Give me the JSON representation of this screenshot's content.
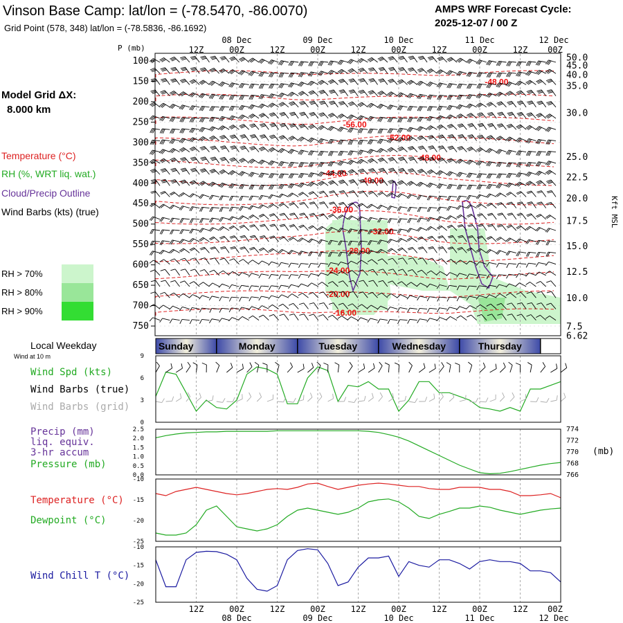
{
  "header": {
    "title": "Vinson Base Camp:  lat/lon = (-78.5470, -86.0070)",
    "subtitle": "Grid Point (578, 348) lat/lon = (-78.5836, -86.1692)",
    "cycle_line1": "AMPS WRF Forecast Cycle:",
    "cycle_line2": "2025-12-07 / 00  Z"
  },
  "sidebar": {
    "model_grid_line1": "Model Grid ΔX:",
    "model_grid_line2": "8.000 km",
    "legend": [
      {
        "label": "Temperature (°C)",
        "color": "#dd2222"
      },
      {
        "label": "RH (%, WRT liq. wat.)",
        "color": "#22aa22"
      },
      {
        "label": "Cloud/Precip Outline",
        "color": "#663399"
      },
      {
        "label": "Wind Barbs (kts) (true)",
        "color": "#000000"
      }
    ],
    "rh_legend": [
      {
        "label": "RH > 70%",
        "color": "#ccf5cc"
      },
      {
        "label": "RH > 80%",
        "color": "#99e699"
      },
      {
        "label": "RH > 90%",
        "color": "#33dd33"
      }
    ]
  },
  "time_axis": {
    "hours": [
      "12Z",
      "00Z",
      "12Z",
      "00Z",
      "12Z",
      "00Z",
      "12Z",
      "00Z",
      "12Z",
      "00Z"
    ],
    "dates": [
      {
        "label": "08 Dec",
        "at_hour": 24
      },
      {
        "label": "09 Dec",
        "at_hour": 48
      },
      {
        "label": "10 Dec",
        "at_hour": 72
      },
      {
        "label": "11 Dec",
        "at_hour": 96
      },
      {
        "label": "12 Dec",
        "at_hour": 120
      }
    ]
  },
  "weekdays": {
    "title": "Local Weekday",
    "subtitle": "Wind at 10 m",
    "days": [
      "Sunday",
      "Monday",
      "Tuesday",
      "Wednesday",
      "Thursday"
    ]
  },
  "sounding": {
    "pressure_label": "P (mb)",
    "pressure_ticks": [
      100,
      150,
      200,
      250,
      300,
      350,
      400,
      450,
      500,
      550,
      600,
      650,
      700,
      750
    ],
    "kft_label": "Kft MSL",
    "kft_ticks": [
      {
        "label": "50.0",
        "p": 92
      },
      {
        "label": "45.0",
        "p": 112
      },
      {
        "label": "40.0",
        "p": 135
      },
      {
        "label": "35.0",
        "p": 162
      },
      {
        "label": "30.0",
        "p": 228
      },
      {
        "label": "25.0",
        "p": 336
      },
      {
        "label": "22.5",
        "p": 386
      },
      {
        "label": "20.0",
        "p": 438
      },
      {
        "label": "17.5",
        "p": 493
      },
      {
        "label": "15.0",
        "p": 555
      },
      {
        "label": "12.5",
        "p": 618
      },
      {
        "label": "10.0",
        "p": 682
      },
      {
        "label": "7.5",
        "p": 752
      },
      {
        "label": "6.62",
        "p": 775
      }
    ],
    "temp_labels": [
      {
        "text": "-48.00",
        "hour": 101,
        "p": 152
      },
      {
        "text": "-56.00",
        "hour": 59,
        "p": 256
      },
      {
        "text": "-52.00",
        "hour": 72,
        "p": 288
      },
      {
        "text": "-48.00",
        "hour": 81,
        "p": 338
      },
      {
        "text": "-44.00",
        "hour": 53,
        "p": 376
      },
      {
        "text": "-40.00",
        "hour": 64,
        "p": 394
      },
      {
        "text": "-36.00",
        "hour": 55,
        "p": 465
      },
      {
        "text": "-32.00",
        "hour": 67,
        "p": 518
      },
      {
        "text": "-28.00",
        "hour": 60,
        "p": 566
      },
      {
        "text": "-24.00",
        "hour": 54,
        "p": 614
      },
      {
        "text": "-20.00",
        "hour": 54,
        "p": 672
      },
      {
        "text": "-16.00",
        "hour": 56,
        "p": 718
      }
    ]
  },
  "panels": {
    "wind": {
      "labels": [
        {
          "text": "Wind Spd (kts)",
          "color": "#22aa22"
        },
        {
          "text": "Wind Barbs (true)",
          "color": "#000000"
        },
        {
          "text": "Wind Barbs (grid)",
          "color": "#aaaaaa"
        }
      ],
      "yticks": [
        "9",
        "6",
        "3",
        "0"
      ]
    },
    "precip": {
      "labels": [
        {
          "text": "Precip (mm)",
          "color": "#663399"
        },
        {
          "text": "liq. equiv.",
          "color": "#663399"
        },
        {
          "text": "3-hr accum",
          "color": "#663399"
        },
        {
          "text": "Pressure (mb)",
          "color": "#22aa22"
        }
      ],
      "yticks": [
        "2.5",
        "2.0",
        "1.5",
        "1.0",
        "0.5",
        "0.0"
      ],
      "pressure_ticks": [
        "774",
        "772",
        "770",
        "768",
        "766"
      ],
      "pressure_unit": "(mb)"
    },
    "temp": {
      "labels": [
        {
          "text": "Temperature (°C)",
          "color": "#dd2222"
        },
        {
          "text": "Dewpoint (°C)",
          "color": "#22aa22"
        }
      ],
      "yticks": [
        "-10",
        "-15",
        "-20",
        "-25"
      ]
    },
    "windchill": {
      "labels": [
        {
          "text": "Wind Chill T (°C)",
          "color": "#1a1aa0"
        }
      ],
      "yticks": [
        "-10",
        "-15",
        "-20",
        "-25"
      ]
    }
  },
  "chart_data": [
    {
      "type": "line",
      "name": "wind_speed",
      "x_unit": "forecast hour",
      "x": [
        0,
        3,
        6,
        9,
        12,
        15,
        18,
        21,
        24,
        27,
        30,
        33,
        36,
        39,
        42,
        45,
        48,
        51,
        54,
        57,
        60,
        63,
        66,
        69,
        72,
        75,
        78,
        81,
        84,
        87,
        90,
        93,
        96,
        99,
        102,
        105,
        108,
        111,
        114,
        117,
        120
      ],
      "series": [
        {
          "name": "Wind Spd (kts)",
          "color": "#22aa22",
          "values": [
            3.5,
            6.8,
            6.5,
            4,
            1.5,
            3,
            2,
            1.8,
            3,
            6.5,
            7.5,
            7.2,
            6.5,
            2.5,
            2.5,
            6,
            7.5,
            7,
            2.8,
            5,
            4.8,
            5.5,
            4.5,
            4.5,
            1.5,
            3,
            5.5,
            5.5,
            4,
            4,
            3.5,
            3,
            2,
            1.8,
            1.5,
            2,
            1.5,
            4.5,
            4.5,
            5,
            5.5
          ]
        }
      ],
      "ylim": [
        0,
        9
      ]
    },
    {
      "type": "line",
      "name": "pressure",
      "x": [
        0,
        3,
        6,
        9,
        12,
        15,
        18,
        21,
        24,
        27,
        30,
        33,
        36,
        39,
        42,
        45,
        48,
        51,
        54,
        57,
        60,
        63,
        66,
        69,
        72,
        75,
        78,
        81,
        84,
        87,
        90,
        93,
        96,
        99,
        102,
        105,
        108,
        111,
        114,
        117,
        120
      ],
      "series": [
        {
          "name": "Pressure (mb)",
          "color": "#22aa22",
          "values": [
            772.9,
            773.3,
            773.6,
            773.8,
            773.9,
            774.0,
            774.0,
            774.1,
            774.1,
            774.1,
            774.1,
            774.1,
            774.2,
            774.2,
            774.2,
            774.2,
            774.2,
            774.2,
            774.2,
            774.2,
            774.2,
            774.1,
            773.9,
            773.5,
            773.0,
            772.3,
            771.4,
            770.5,
            769.6,
            768.7,
            767.8,
            767.1,
            766.4,
            766.2,
            766.3,
            766.6,
            767.0,
            767.4,
            767.8,
            768.1,
            768.3
          ]
        }
      ],
      "precip": [],
      "ylim": [
        0,
        2.5
      ],
      "pressure_range": [
        766,
        774.5
      ]
    },
    {
      "type": "line",
      "name": "temperature_dewpoint",
      "x": [
        0,
        3,
        6,
        9,
        12,
        15,
        18,
        21,
        24,
        27,
        30,
        33,
        36,
        39,
        42,
        45,
        48,
        51,
        54,
        57,
        60,
        63,
        66,
        69,
        72,
        75,
        78,
        81,
        84,
        87,
        90,
        93,
        96,
        99,
        102,
        105,
        108,
        111,
        114,
        117,
        120
      ],
      "series": [
        {
          "name": "Temperature (°C)",
          "color": "#dd2222",
          "values": [
            -13.5,
            -14,
            -13,
            -12.5,
            -12,
            -12.5,
            -13,
            -13.5,
            -13.8,
            -13.5,
            -13,
            -12.5,
            -12.3,
            -12.5,
            -12,
            -11.2,
            -11,
            -11.8,
            -12.5,
            -12,
            -11.5,
            -11.2,
            -11,
            -11.2,
            -11.5,
            -11.8,
            -11.8,
            -12.3,
            -12.5,
            -12.5,
            -12,
            -12,
            -12,
            -12.5,
            -12.5,
            -13,
            -14,
            -14,
            -13.8,
            -13.5,
            -14.5
          ]
        },
        {
          "name": "Dewpoint (°C)",
          "color": "#22aa22",
          "values": [
            -23,
            -23.5,
            -23.5,
            -23,
            -21,
            -17.5,
            -16.5,
            -19,
            -21.5,
            -22,
            -22.5,
            -22,
            -21,
            -19,
            -17.5,
            -17,
            -17.5,
            -18,
            -18.5,
            -18,
            -17,
            -15.5,
            -15,
            -14.8,
            -15.5,
            -17,
            -19,
            -19.5,
            -18.5,
            -17.8,
            -17,
            -17,
            -16.5,
            -16.8,
            -17.5,
            -18,
            -18.5,
            -18,
            -17.5,
            -17.2,
            -17
          ]
        }
      ],
      "ylim": [
        -25,
        -10
      ]
    },
    {
      "type": "line",
      "name": "wind_chill",
      "x": [
        0,
        3,
        6,
        9,
        12,
        15,
        18,
        21,
        24,
        27,
        30,
        33,
        36,
        39,
        42,
        45,
        48,
        51,
        54,
        57,
        60,
        63,
        66,
        69,
        72,
        75,
        78,
        81,
        84,
        87,
        90,
        93,
        96,
        99,
        102,
        105,
        108,
        111,
        114,
        117,
        120
      ],
      "series": [
        {
          "name": "Wind Chill T (°C)",
          "color": "#1a1aa0",
          "values": [
            -13.5,
            -20.8,
            -20.8,
            -13.5,
            -11.5,
            -11.2,
            -11.3,
            -12,
            -13.5,
            -18.5,
            -21.5,
            -22,
            -20.5,
            -13.5,
            -11,
            -10.5,
            -10.8,
            -14.5,
            -20.5,
            -19.5,
            -15.5,
            -13,
            -13,
            -12.5,
            -18,
            -14,
            -15,
            -15.5,
            -13.5,
            -13.5,
            -14.5,
            -16,
            -14,
            -13.5,
            -14,
            -14,
            -14.5,
            -16.5,
            -16.5,
            -17,
            -19.5
          ]
        }
      ],
      "ylim": [
        -25,
        -10
      ]
    }
  ]
}
